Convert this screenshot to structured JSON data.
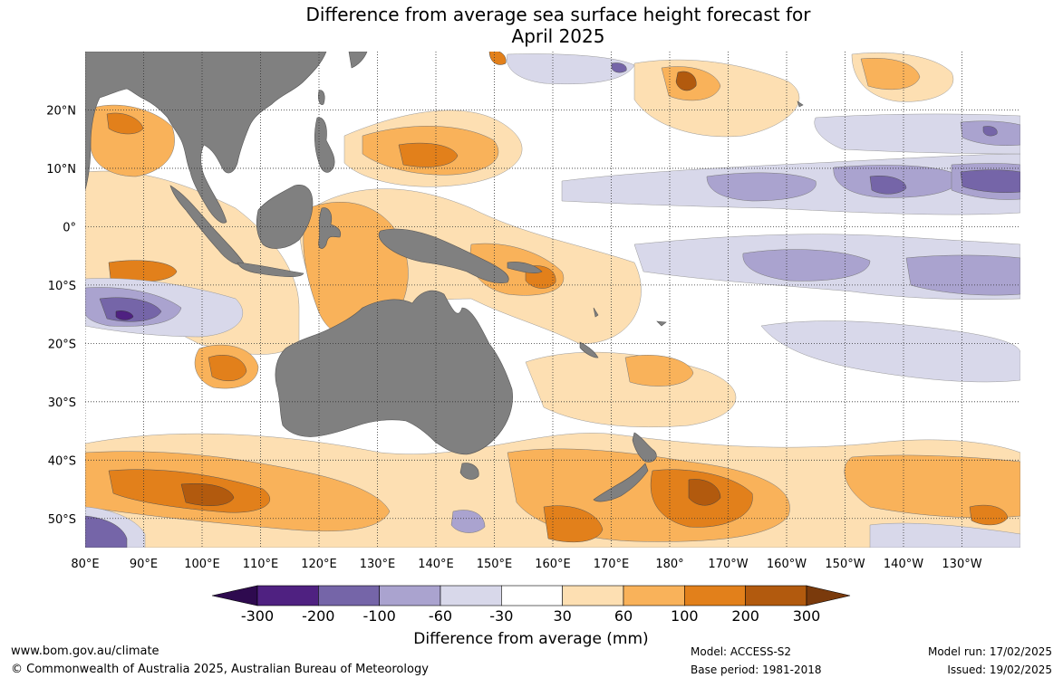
{
  "title": {
    "line1": "Difference from average sea surface height forecast for",
    "line2": "April 2025"
  },
  "map": {
    "lon_labels": [
      "80°E",
      "90°E",
      "100°E",
      "110°E",
      "120°E",
      "130°E",
      "140°E",
      "150°E",
      "160°E",
      "170°E",
      "180°",
      "170°W",
      "160°W",
      "150°W",
      "140°W",
      "130°W"
    ],
    "lat_labels": [
      "20°N",
      "10°N",
      "0°",
      "10°S",
      "20°S",
      "30°S",
      "40°S",
      "50°S"
    ],
    "lon_range": [
      80,
      240
    ],
    "lat_range": [
      -55,
      30
    ],
    "land_color": "#808080",
    "grid": "dotted"
  },
  "colorbar": {
    "labels": [
      "-300",
      "-200",
      "-100",
      "-60",
      "-30",
      "30",
      "60",
      "100",
      "200",
      "300"
    ],
    "colors": [
      "#2e0a4f",
      "#4f2181",
      "#7565a8",
      "#aaa3cf",
      "#d8d8ea",
      "#ffffff",
      "#fddfb2",
      "#f9b25a",
      "#e2801b",
      "#b25a0e",
      "#7a3a0c"
    ],
    "title": "Difference from average (mm)"
  },
  "footer": {
    "website": "www.bom.gov.au/climate",
    "copyright": "© Commonwealth of Australia 2025, Australian Bureau of Meteorology",
    "model": "Model: ACCESS-S2",
    "base_period": "Base period: 1981-2018",
    "model_run": "Model run: 17/02/2025",
    "issued": "Issued: 19/02/2025"
  }
}
